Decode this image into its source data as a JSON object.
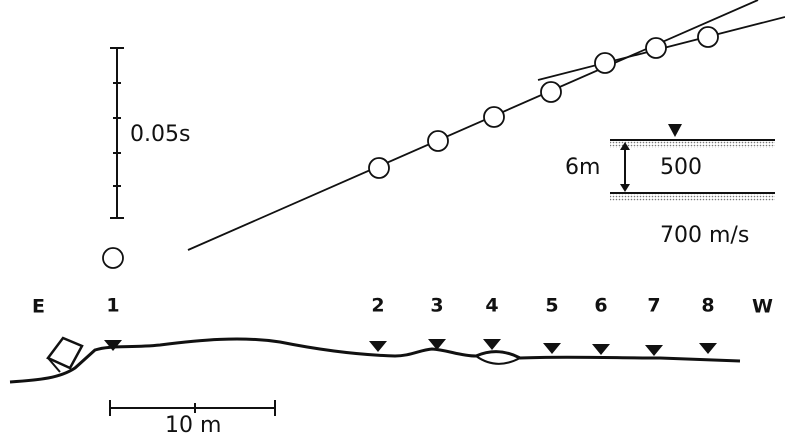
{
  "time_scale": {
    "label": "0.05s"
  },
  "inset": {
    "thickness": "6m",
    "upper_velocity": "500",
    "lower_velocity": "700 m/s"
  },
  "profile": {
    "west_label": "W",
    "east_label": "E",
    "stations": [
      "1",
      "2",
      "3",
      "4",
      "5",
      "6",
      "7",
      "8"
    ],
    "scale_label": "10 m"
  }
}
